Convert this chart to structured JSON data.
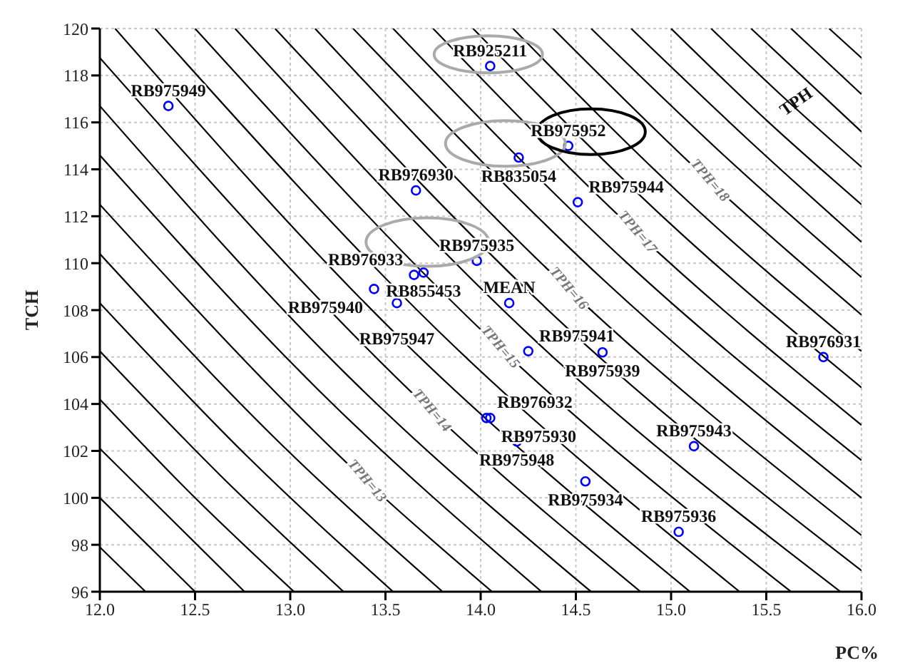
{
  "chart_data": {
    "type": "scatter",
    "xlabel": "PC%",
    "ylabel": "TCH",
    "xlim": [
      12,
      16
    ],
    "ylim": [
      96,
      120
    ],
    "xticks": [
      {
        "value": 12,
        "label": "12.0"
      },
      {
        "value": 12.5,
        "label": "12.5"
      },
      {
        "value": 13,
        "label": "13.0"
      },
      {
        "value": 13.5,
        "label": "13.5"
      },
      {
        "value": 14,
        "label": "14.0"
      },
      {
        "value": 14.5,
        "label": "14.5"
      },
      {
        "value": 15,
        "label": "15.0"
      },
      {
        "value": 15.5,
        "label": "15.5"
      },
      {
        "value": 16,
        "label": "16.0"
      }
    ],
    "yticks": [
      96,
      98,
      100,
      102,
      104,
      106,
      108,
      110,
      112,
      114,
      116,
      118,
      120
    ],
    "grid": true,
    "annotations": [
      "TPH"
    ],
    "series": [
      {
        "color": "#0000ff",
        "marker": "circle",
        "x": [
          12.36,
          14.05,
          14.46,
          14.2,
          14.51,
          13.66,
          13.98,
          13.7,
          13.65,
          13.44,
          13.56,
          14.15,
          14.25,
          14.64,
          15.8,
          14.03,
          14.05,
          14.19,
          15.12,
          14.55,
          15.04
        ],
        "values": [
          116.7,
          118.4,
          115.0,
          114.5,
          112.6,
          113.1,
          110.1,
          109.6,
          109.5,
          108.9,
          108.3,
          108.3,
          106.25,
          106.2,
          106.0,
          103.4,
          103.4,
          102.4,
          102.2,
          100.7,
          98.55
        ],
        "value_labels": [
          "RB975949",
          "RB925211",
          "RB975952",
          "RB835054",
          "RB975944",
          "RB976930",
          "RB975935",
          "RB855453",
          "RB976933",
          "RB975940",
          "RB975947",
          "MEAN",
          "RB975941",
          "RB975939",
          "RB976931",
          "RB976932",
          "RB975930",
          "RB975948",
          "RB975943",
          "RB975934",
          "RB975936"
        ]
      },
      {
        "type": "line",
        "color": "#000000",
        "x": [
          12,
          12.24
        ],
        "values": [
          97.9,
          96
        ]
      },
      {
        "type": "line",
        "color": "#000000",
        "x": [
          12,
          12.5
        ],
        "values": [
          100,
          96
        ]
      },
      {
        "type": "line",
        "color": "#000000",
        "x": [
          12,
          12.76
        ],
        "values": [
          102.1,
          96
        ]
      },
      {
        "type": "line",
        "color": "#000000",
        "x": [
          12,
          12.5,
          13.02
        ],
        "values": [
          104.2,
          100,
          96
        ]
      },
      {
        "type": "line",
        "color": "#000000",
        "x": [
          12,
          12.64,
          13.28
        ],
        "values": [
          106.25,
          100.9,
          96
        ]
      },
      {
        "type": "line",
        "color": "#000000",
        "x": [
          12,
          12.77,
          13.54
        ],
        "values": [
          108.3,
          101.8,
          96
        ]
      },
      {
        "type": "line",
        "color": "#000000",
        "x": [
          12,
          12.9,
          13.8
        ],
        "values": [
          110.4,
          102.7,
          96
        ]
      },
      {
        "type": "line",
        "color": "#000000",
        "name": "TPH=13",
        "x": [
          12,
          13.4,
          14.06
        ],
        "values": [
          112.5,
          100.7,
          96
        ]
      },
      {
        "type": "line",
        "color": "#000000",
        "x": [
          12,
          13.16,
          14.32
        ],
        "values": [
          114.6,
          104.5,
          96
        ]
      },
      {
        "type": "line",
        "color": "#000000",
        "x": [
          12,
          13.29,
          14.58
        ],
        "values": [
          116.7,
          105.3,
          96
        ]
      },
      {
        "type": "line",
        "color": "#000000",
        "name": "TPH=14",
        "x": [
          12,
          13.74,
          14.84
        ],
        "values": [
          118.75,
          103.7,
          96
        ]
      },
      {
        "type": "line",
        "color": "#000000",
        "x": [
          12.08,
          13.59,
          15.1
        ],
        "values": [
          120,
          106.7,
          96
        ]
      },
      {
        "type": "line",
        "color": "#000000",
        "x": [
          12.29,
          13.83,
          15.36
        ],
        "values": [
          120,
          106.7,
          96
        ]
      },
      {
        "type": "line",
        "color": "#000000",
        "name": "TPH=15",
        "x": [
          12.5,
          14.1,
          15.63
        ],
        "values": [
          120,
          106.4,
          96
        ]
      },
      {
        "type": "line",
        "color": "#000000",
        "x": [
          12.71,
          14.3,
          15.89
        ],
        "values": [
          120,
          106.6,
          96
        ]
      },
      {
        "type": "line",
        "color": "#000000",
        "x": [
          12.92,
          14.46,
          16
        ],
        "values": [
          120,
          107.2,
          96.9
        ]
      },
      {
        "type": "line",
        "color": "#000000",
        "name": "TPH=16",
        "x": [
          13.13,
          14.46,
          16
        ],
        "values": [
          120,
          108.9,
          98.4
        ]
      },
      {
        "type": "line",
        "color": "#000000",
        "x": [
          13.33,
          14.67,
          16
        ],
        "values": [
          120,
          109.1,
          100
        ]
      },
      {
        "type": "line",
        "color": "#000000",
        "x": [
          13.54,
          14.77,
          16
        ],
        "values": [
          120,
          110.0,
          101.6
        ]
      },
      {
        "type": "line",
        "color": "#000000",
        "name": "TPH=17",
        "x": [
          13.75,
          14.82,
          16
        ],
        "values": [
          120,
          111.3,
          103.1
        ]
      },
      {
        "type": "line",
        "color": "#000000",
        "x": [
          13.96,
          14.98,
          16
        ],
        "values": [
          120,
          111.8,
          104.7
        ]
      },
      {
        "type": "line",
        "color": "#000000",
        "x": [
          14.17,
          15.08,
          16
        ],
        "values": [
          120,
          112.7,
          106.25
        ]
      },
      {
        "type": "line",
        "color": "#000000",
        "name": "TPH=18",
        "x": [
          14.38,
          15.2,
          16
        ],
        "values": [
          120,
          113.5,
          107.8
        ]
      },
      {
        "type": "line",
        "color": "#000000",
        "x": [
          14.58,
          15.29,
          16
        ],
        "values": [
          120,
          114.5,
          109.4
        ]
      },
      {
        "type": "line",
        "color": "#000000",
        "x": [
          14.79,
          15.4,
          16
        ],
        "values": [
          120,
          115.3,
          110.9
        ]
      },
      {
        "type": "line",
        "color": "#000000",
        "x": [
          15,
          15.5,
          16
        ],
        "values": [
          120,
          116.1,
          112.5
        ]
      },
      {
        "type": "line",
        "color": "#000000",
        "x": [
          15.21,
          15.6,
          16
        ],
        "values": [
          120,
          117.0,
          114.1
        ]
      },
      {
        "type": "line",
        "color": "#000000",
        "x": [
          15.42,
          16
        ],
        "values": [
          120,
          115.6
        ]
      },
      {
        "type": "line",
        "color": "#000000",
        "x": [
          15.63,
          16
        ],
        "values": [
          120,
          117.2
        ]
      },
      {
        "type": "line",
        "color": "#000000",
        "x": [
          15.83,
          16
        ],
        "values": [
          120,
          118.75
        ]
      }
    ]
  }
}
